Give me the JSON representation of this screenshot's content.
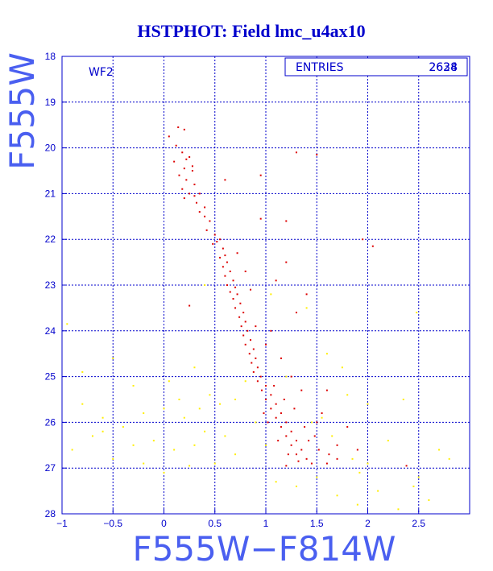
{
  "chart_data": {
    "type": "scatter",
    "title": "HSTPHOT: Field lmc_u4ax10",
    "xlabel": "F555W−F814W",
    "ylabel": "F555W",
    "xlim": [
      -1,
      3
    ],
    "ylim": [
      28,
      18
    ],
    "y_inverted": true,
    "grid": true,
    "x_ticks": [
      -1,
      -0.5,
      0,
      0.5,
      1,
      1.5,
      2,
      2.5
    ],
    "x_tick_labels": [
      "−1",
      "−0.5",
      "0",
      "0.5",
      "1",
      "1.5",
      "2",
      "2.5"
    ],
    "y_ticks": [
      18,
      19,
      20,
      21,
      22,
      23,
      24,
      25,
      26,
      27,
      28
    ],
    "y_tick_labels": [
      "18",
      "19",
      "20",
      "21",
      "22",
      "23",
      "24",
      "25",
      "26",
      "27",
      "28"
    ],
    "annotation": "WF2",
    "stats": {
      "label": "ENTRIES",
      "values": [
        "2628",
        "2634"
      ]
    },
    "series": [
      {
        "color": "#dd0000",
        "points": [
          [
            0.05,
            19.75
          ],
          [
            0.14,
            19.55
          ],
          [
            0.2,
            19.6
          ],
          [
            0.12,
            19.95
          ],
          [
            0.18,
            20.1
          ],
          [
            0.25,
            20.2
          ],
          [
            0.1,
            20.3
          ],
          [
            0.2,
            20.45
          ],
          [
            0.28,
            20.5
          ],
          [
            0.15,
            20.6
          ],
          [
            0.22,
            20.7
          ],
          [
            0.3,
            20.8
          ],
          [
            0.18,
            20.9
          ],
          [
            0.25,
            21.0
          ],
          [
            0.3,
            21.05
          ],
          [
            0.2,
            21.1
          ],
          [
            0.32,
            21.2
          ],
          [
            0.35,
            21.4
          ],
          [
            0.4,
            21.5
          ],
          [
            0.45,
            21.6
          ],
          [
            0.42,
            21.8
          ],
          [
            0.5,
            21.9
          ],
          [
            0.55,
            22.0
          ],
          [
            0.52,
            22.05
          ],
          [
            0.58,
            22.2
          ],
          [
            0.6,
            22.35
          ],
          [
            0.55,
            22.4
          ],
          [
            0.62,
            22.5
          ],
          [
            0.58,
            22.6
          ],
          [
            0.65,
            22.7
          ],
          [
            0.6,
            22.8
          ],
          [
            0.68,
            22.9
          ],
          [
            0.62,
            23.0
          ],
          [
            0.7,
            23.05
          ],
          [
            0.65,
            23.15
          ],
          [
            0.72,
            23.2
          ],
          [
            0.68,
            23.3
          ],
          [
            0.75,
            23.4
          ],
          [
            0.7,
            23.5
          ],
          [
            0.78,
            23.6
          ],
          [
            0.74,
            23.7
          ],
          [
            0.8,
            23.8
          ],
          [
            0.76,
            23.9
          ],
          [
            0.82,
            24.0
          ],
          [
            0.78,
            24.1
          ],
          [
            0.85,
            24.2
          ],
          [
            0.8,
            24.3
          ],
          [
            0.88,
            24.4
          ],
          [
            0.84,
            24.5
          ],
          [
            0.9,
            24.6
          ],
          [
            0.86,
            24.7
          ],
          [
            0.92,
            24.8
          ],
          [
            0.88,
            24.9
          ],
          [
            0.95,
            25.0
          ],
          [
            0.92,
            25.1
          ],
          [
            1.0,
            25.2
          ],
          [
            0.96,
            25.3
          ],
          [
            1.05,
            25.4
          ],
          [
            1.0,
            25.5
          ],
          [
            1.1,
            25.6
          ],
          [
            1.05,
            25.7
          ],
          [
            1.15,
            25.8
          ],
          [
            1.1,
            25.9
          ],
          [
            1.2,
            26.0
          ],
          [
            1.15,
            26.1
          ],
          [
            1.25,
            26.2
          ],
          [
            1.2,
            26.3
          ],
          [
            1.3,
            26.4
          ],
          [
            1.25,
            26.5
          ],
          [
            1.35,
            26.6
          ],
          [
            1.3,
            26.7
          ],
          [
            1.4,
            26.8
          ],
          [
            1.45,
            26.9
          ],
          [
            1.2,
            26.95
          ],
          [
            1.6,
            26.9
          ],
          [
            1.7,
            26.8
          ],
          [
            2.38,
            26.95
          ],
          [
            0.25,
            23.45
          ],
          [
            0.95,
            20.6
          ],
          [
            0.6,
            20.7
          ],
          [
            1.3,
            20.1
          ],
          [
            1.5,
            20.15
          ],
          [
            0.95,
            21.55
          ],
          [
            1.2,
            21.6
          ],
          [
            1.95,
            22.0
          ],
          [
            2.05,
            22.15
          ],
          [
            1.2,
            22.5
          ],
          [
            1.1,
            22.9
          ],
          [
            1.4,
            23.2
          ],
          [
            1.3,
            23.6
          ],
          [
            1.05,
            24.0
          ],
          [
            1.6,
            25.3
          ],
          [
            1.55,
            25.8
          ],
          [
            1.8,
            26.1
          ],
          [
            1.9,
            26.6
          ],
          [
            1.7,
            26.5
          ],
          [
            1.5,
            26.0
          ],
          [
            1.35,
            25.3
          ],
          [
            1.25,
            25.0
          ],
          [
            1.15,
            24.6
          ],
          [
            1.0,
            24.3
          ],
          [
            0.9,
            23.9
          ],
          [
            0.85,
            23.1
          ],
          [
            0.8,
            22.7
          ],
          [
            0.72,
            22.3
          ],
          [
            0.48,
            22.1
          ],
          [
            0.4,
            21.3
          ],
          [
            0.35,
            21.0
          ],
          [
            0.28,
            20.4
          ],
          [
            0.22,
            20.25
          ],
          [
            1.02,
            26.0
          ],
          [
            1.12,
            26.4
          ],
          [
            1.22,
            26.7
          ],
          [
            1.32,
            26.85
          ],
          [
            1.42,
            26.4
          ],
          [
            1.52,
            26.6
          ],
          [
            1.62,
            26.7
          ],
          [
            0.98,
            25.8
          ],
          [
            1.08,
            25.2
          ],
          [
            1.18,
            25.5
          ],
          [
            1.28,
            25.7
          ],
          [
            1.38,
            26.1
          ],
          [
            1.48,
            26.3
          ]
        ]
      },
      {
        "color": "#ffee00",
        "points": [
          [
            -0.95,
            23.85
          ],
          [
            -0.5,
            24.6
          ],
          [
            -0.3,
            25.2
          ],
          [
            -0.8,
            25.6
          ],
          [
            -0.6,
            25.9
          ],
          [
            -0.4,
            26.1
          ],
          [
            -0.2,
            25.8
          ],
          [
            0.0,
            25.7
          ],
          [
            0.2,
            25.9
          ],
          [
            0.4,
            26.2
          ],
          [
            -0.9,
            26.6
          ],
          [
            -0.7,
            26.3
          ],
          [
            -0.5,
            26.8
          ],
          [
            -0.3,
            26.5
          ],
          [
            -0.1,
            26.4
          ],
          [
            0.1,
            26.6
          ],
          [
            0.3,
            26.5
          ],
          [
            0.5,
            26.9
          ],
          [
            0.7,
            26.7
          ],
          [
            -0.6,
            26.2
          ],
          [
            -0.2,
            26.9
          ],
          [
            0.0,
            27.1
          ],
          [
            0.25,
            26.95
          ],
          [
            0.6,
            26.3
          ],
          [
            0.8,
            25.1
          ],
          [
            0.7,
            25.5
          ],
          [
            0.9,
            26.0
          ],
          [
            1.0,
            26.5
          ],
          [
            1.1,
            27.3
          ],
          [
            1.3,
            27.4
          ],
          [
            1.5,
            27.2
          ],
          [
            1.7,
            27.6
          ],
          [
            1.9,
            27.8
          ],
          [
            2.1,
            27.5
          ],
          [
            2.3,
            27.9
          ],
          [
            2.5,
            27.2
          ],
          [
            2.7,
            26.6
          ],
          [
            2.45,
            27.4
          ],
          [
            2.0,
            25.6
          ],
          [
            1.8,
            25.4
          ],
          [
            1.75,
            24.8
          ],
          [
            1.6,
            24.5
          ],
          [
            1.4,
            23.5
          ],
          [
            1.2,
            25.0
          ],
          [
            1.45,
            26.0
          ],
          [
            1.55,
            25.9
          ],
          [
            1.65,
            26.3
          ],
          [
            1.85,
            26.8
          ],
          [
            2.0,
            26.9
          ],
          [
            2.2,
            26.4
          ],
          [
            2.6,
            27.7
          ],
          [
            2.8,
            26.8
          ],
          [
            0.45,
            25.4
          ],
          [
            0.55,
            25.6
          ],
          [
            0.3,
            24.8
          ],
          [
            -0.8,
            24.9
          ],
          [
            0.05,
            25.1
          ],
          [
            0.15,
            25.5
          ],
          [
            0.35,
            25.7
          ],
          [
            1.92,
            27.1
          ],
          [
            2.35,
            25.5
          ],
          [
            1.05,
            23.2
          ],
          [
            2.48,
            23.6
          ],
          [
            0.4,
            23.0
          ]
        ]
      }
    ]
  }
}
